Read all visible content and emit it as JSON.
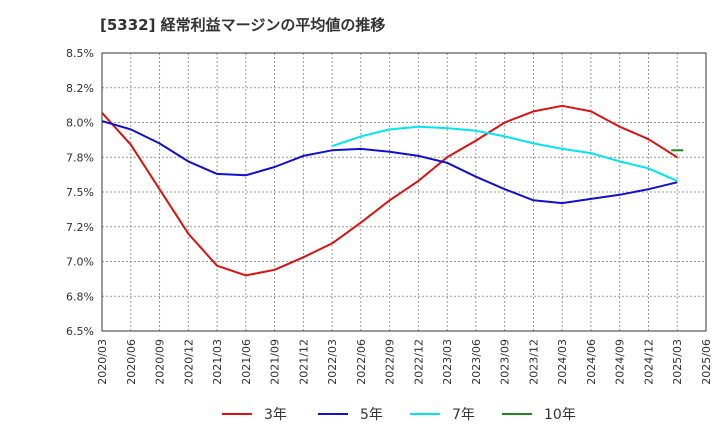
{
  "chart_data": {
    "type": "line",
    "title": "[5332]  経常利益マージンの平均値の推移",
    "xlabel": "",
    "ylabel": "",
    "ylim": [
      6.5,
      8.5
    ],
    "y_ticks": [
      "6.5%",
      "6.8%",
      "7.0%",
      "7.2%",
      "7.5%",
      "7.8%",
      "8.0%",
      "8.2%",
      "8.5%"
    ],
    "x_ticks": [
      "2020/03",
      "2020/06",
      "2020/09",
      "2020/12",
      "2021/03",
      "2021/06",
      "2021/09",
      "2021/12",
      "2022/03",
      "2022/06",
      "2022/09",
      "2022/12",
      "2023/03",
      "2023/06",
      "2023/09",
      "2023/12",
      "2024/03",
      "2024/06",
      "2024/09",
      "2024/12",
      "2025/03",
      "2025/06"
    ],
    "grid": true,
    "legend_position": "bottom",
    "series": [
      {
        "name": "3年",
        "color": "#dd1111",
        "values": [
          8.07,
          7.84,
          7.52,
          7.2,
          6.97,
          6.9,
          6.94,
          7.03,
          7.13,
          7.28,
          7.44,
          7.58,
          7.75,
          7.87,
          8.0,
          8.08,
          8.12,
          8.08,
          7.97,
          7.88,
          7.75
        ]
      },
      {
        "name": "5年",
        "color": "#1111cc",
        "values": [
          8.01,
          7.95,
          7.85,
          7.72,
          7.63,
          7.62,
          7.68,
          7.76,
          7.8,
          7.81,
          7.79,
          7.76,
          7.71,
          7.61,
          7.52,
          7.44,
          7.42,
          7.45,
          7.48,
          7.52,
          7.57
        ]
      },
      {
        "name": "7年",
        "color": "#00e5ee",
        "values": [
          null,
          null,
          null,
          null,
          null,
          null,
          null,
          null,
          7.83,
          7.9,
          7.95,
          7.97,
          7.96,
          7.94,
          7.9,
          7.85,
          7.81,
          7.78,
          7.72,
          7.67,
          7.58
        ]
      },
      {
        "name": "10年",
        "color": "#228822",
        "values": [
          null,
          null,
          null,
          null,
          null,
          null,
          null,
          null,
          null,
          null,
          null,
          null,
          null,
          null,
          null,
          null,
          null,
          null,
          null,
          null,
          7.8
        ]
      }
    ]
  }
}
